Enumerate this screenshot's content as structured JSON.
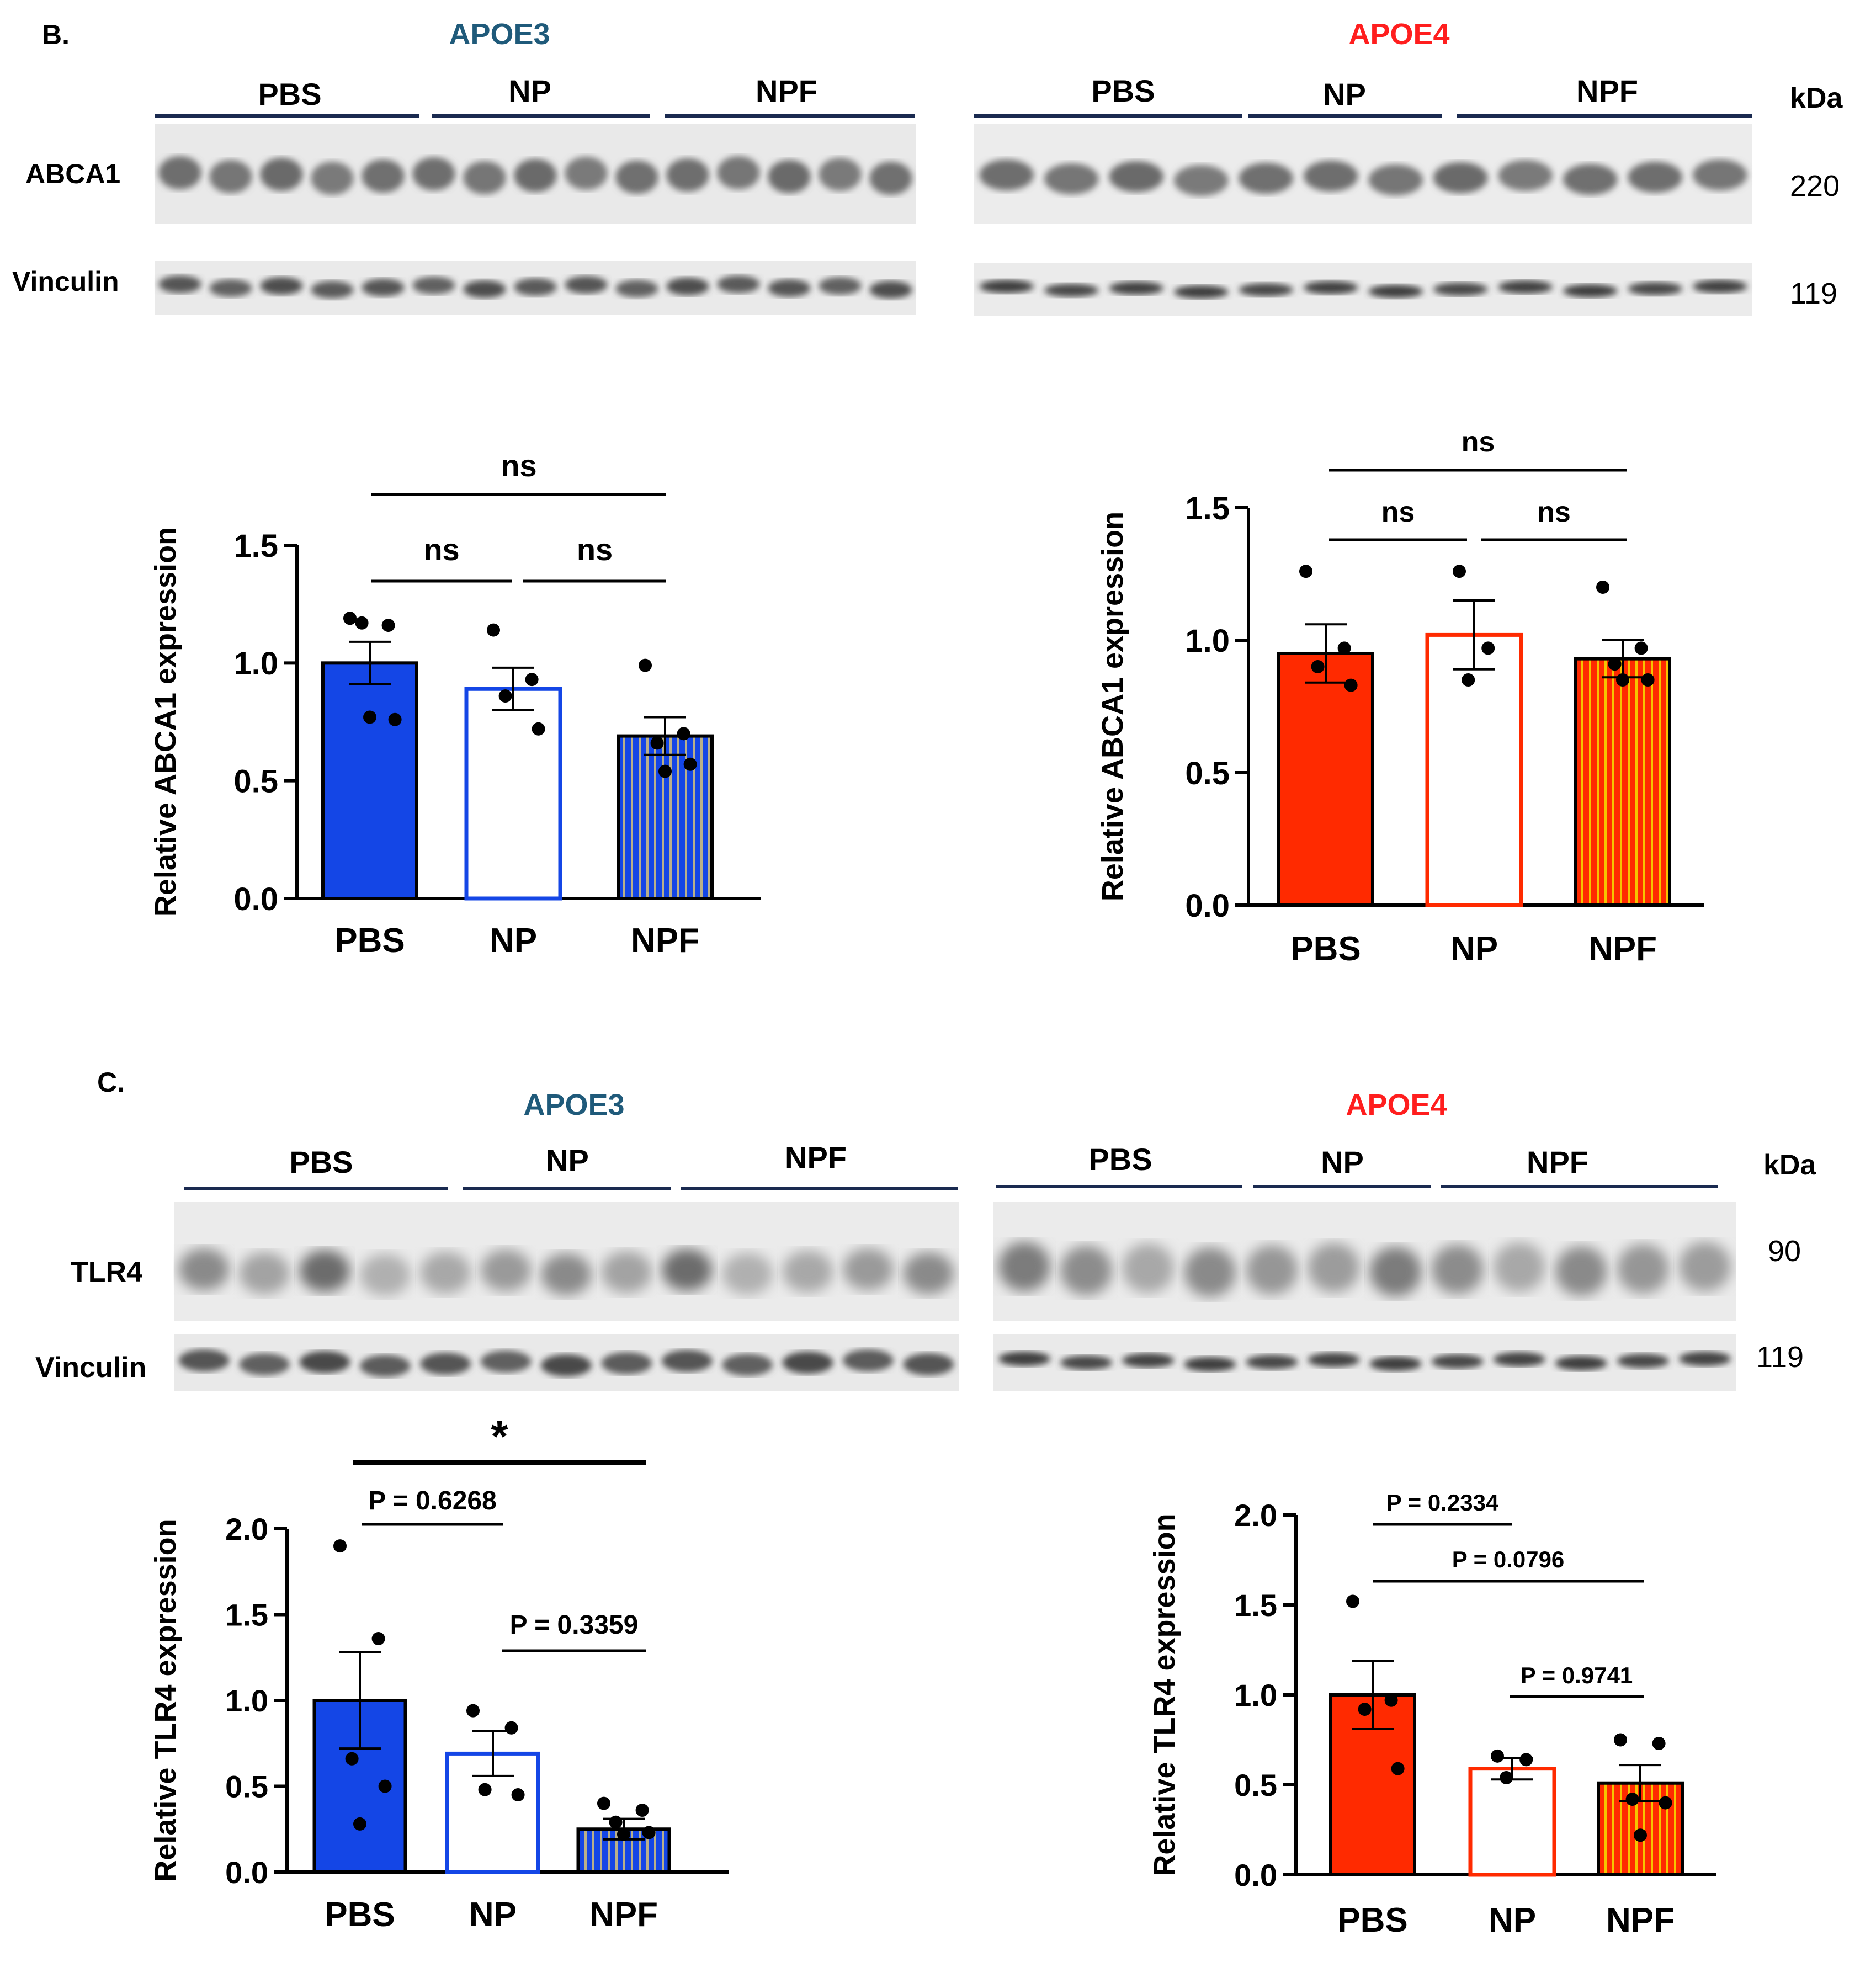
{
  "panels": [
    {
      "letter": "B.",
      "blot": {
        "apoe3": {
          "title": "APOE3",
          "title_color": "#1f5a7a",
          "groups": [
            "PBS",
            "NP",
            "NPF"
          ],
          "rows": [
            {
              "label": "ABCA1",
              "lanes": 15
            },
            {
              "label": "Vinculin",
              "lanes": 15
            }
          ]
        },
        "apoe4": {
          "title": "APOE4",
          "title_color": "#ff1e1e",
          "groups": [
            "PBS",
            "NP",
            "NPF"
          ],
          "rows": [
            {
              "label": "ABCA1",
              "lanes": 12
            },
            {
              "label": "Vinculin",
              "lanes": 12
            }
          ]
        },
        "kda_header": "kDa",
        "kda_values": [
          "220",
          "119"
        ]
      }
    },
    {
      "letter": "C.",
      "blot": {
        "apoe3": {
          "title": "APOE3",
          "title_color": "#1f5a7a",
          "groups": [
            "PBS",
            "NP",
            "NPF"
          ],
          "rows": [
            {
              "label": "TLR4",
              "lanes": 13
            },
            {
              "label": "Vinculin",
              "lanes": 13
            }
          ]
        },
        "apoe4": {
          "title": "APOE4",
          "title_color": "#ff1e1e",
          "groups": [
            "PBS",
            "NP",
            "NPF"
          ],
          "rows": [
            {
              "label": "TLR4",
              "lanes": 12
            },
            {
              "label": "Vinculin",
              "lanes": 12
            }
          ]
        },
        "kda_header": "kDa",
        "kda_values": [
          "90",
          "119"
        ]
      }
    }
  ],
  "chart_data": [
    {
      "id": "abca1-apoe3",
      "type": "bar",
      "ylabel": "Relative ABCA1 expression",
      "ylim": [
        0,
        1.5
      ],
      "yticks": [
        "0.0",
        "0.5",
        "1.0",
        "1.5"
      ],
      "categories": [
        "PBS",
        "NP",
        "NPF"
      ],
      "values": [
        1.0,
        0.89,
        0.69
      ],
      "sem": [
        0.09,
        0.09,
        0.08
      ],
      "points": [
        [
          1.19,
          1.16,
          1.17,
          0.76,
          0.77
        ],
        [
          1.14,
          0.93,
          0.86,
          0.72
        ],
        [
          0.99,
          0.7,
          0.66,
          0.57,
          0.54
        ]
      ],
      "fills": [
        "solid",
        "open",
        "striped"
      ],
      "color": "#1446e6",
      "stripe_color": "#b9b08a",
      "significance": [
        {
          "from": 0,
          "to": 1,
          "label": "ns"
        },
        {
          "from": 1,
          "to": 2,
          "label": "ns"
        },
        {
          "from": 0,
          "to": 2,
          "label": "ns"
        }
      ]
    },
    {
      "id": "abca1-apoe4",
      "type": "bar",
      "ylabel": "Relative ABCA1 expression",
      "ylim": [
        0,
        1.5
      ],
      "yticks": [
        "0.0",
        "0.5",
        "1.0",
        "1.5"
      ],
      "categories": [
        "PBS",
        "NP",
        "NPF"
      ],
      "values": [
        0.95,
        1.02,
        0.93
      ],
      "sem": [
        0.11,
        0.13,
        0.07
      ],
      "points": [
        [
          1.26,
          0.97,
          0.9,
          0.83
        ],
        [
          1.26,
          0.97,
          0.85
        ],
        [
          1.2,
          0.97,
          0.91,
          0.85,
          0.85
        ]
      ],
      "fills": [
        "solid",
        "open",
        "striped"
      ],
      "color": "#ff2a00",
      "stripe_color": "#f5c400",
      "significance": [
        {
          "from": 0,
          "to": 1,
          "label": "ns"
        },
        {
          "from": 1,
          "to": 2,
          "label": "ns"
        },
        {
          "from": 0,
          "to": 2,
          "label": "ns"
        }
      ]
    },
    {
      "id": "tlr4-apoe3",
      "type": "bar",
      "ylabel": "Relative TLR4 expression",
      "ylim": [
        0,
        2.0
      ],
      "yticks": [
        "0.0",
        "0.5",
        "1.0",
        "1.5",
        "2.0"
      ],
      "categories": [
        "PBS",
        "NP",
        "NPF"
      ],
      "values": [
        1.0,
        0.69,
        0.25
      ],
      "sem": [
        0.28,
        0.13,
        0.06
      ],
      "points": [
        [
          1.9,
          1.36,
          0.66,
          0.5,
          0.28
        ],
        [
          0.94,
          0.84,
          0.48,
          0.45
        ],
        [
          0.4,
          0.36,
          0.29,
          0.23,
          0.22
        ]
      ],
      "fills": [
        "solid",
        "open",
        "striped"
      ],
      "color": "#1446e6",
      "stripe_color": "#b9b08a",
      "significance": [
        {
          "from": 0,
          "to": 1,
          "label": "P = 0.6268"
        },
        {
          "from": 1,
          "to": 2,
          "label": "P = 0.3359"
        },
        {
          "from": 0,
          "to": 2,
          "label": "*"
        }
      ]
    },
    {
      "id": "tlr4-apoe4",
      "type": "bar",
      "ylabel": "Relative TLR4 expression",
      "ylim": [
        0,
        2.0
      ],
      "yticks": [
        "0.0",
        "0.5",
        "1.0",
        "1.5",
        "2.0"
      ],
      "categories": [
        "PBS",
        "NP",
        "NPF"
      ],
      "values": [
        1.0,
        0.59,
        0.51
      ],
      "sem": [
        0.19,
        0.06,
        0.1
      ],
      "points": [
        [
          1.52,
          0.97,
          0.92,
          0.59
        ],
        [
          0.66,
          0.64,
          0.54
        ],
        [
          0.75,
          0.73,
          0.42,
          0.4,
          0.22
        ]
      ],
      "fills": [
        "solid",
        "open",
        "striped"
      ],
      "color": "#ff2a00",
      "stripe_color": "#f5c400",
      "significance": [
        {
          "from": 0,
          "to": 1,
          "label": "P = 0.2334"
        },
        {
          "from": 0,
          "to": 2,
          "label": "P = 0.0796"
        },
        {
          "from": 1,
          "to": 2,
          "label": "P = 0.9741"
        }
      ]
    }
  ]
}
